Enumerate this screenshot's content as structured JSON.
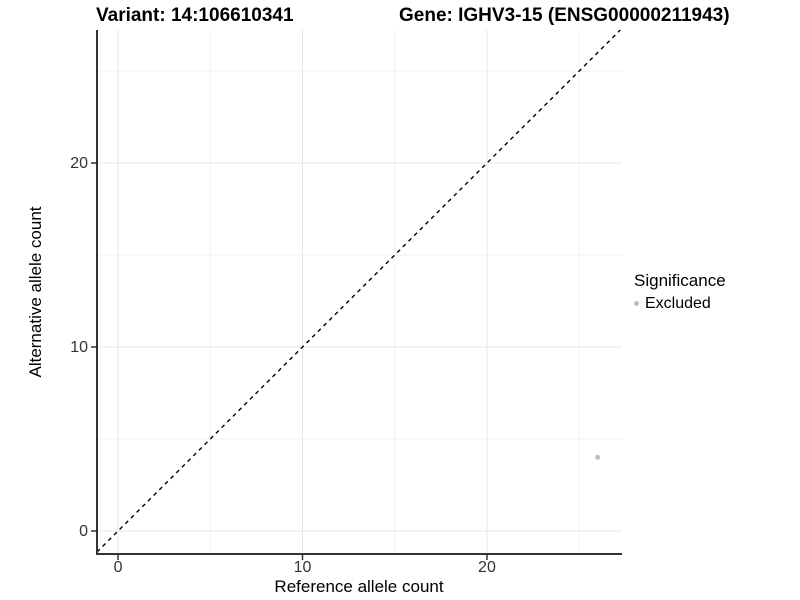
{
  "chart_data": {
    "type": "scatter",
    "title_left": "Variant: 14:106610341",
    "title_right": "Gene: IGHV3-15 (ENSG00000211943)",
    "xlabel": "Reference allele count",
    "ylabel": "Alternative allele count",
    "xlim": [
      -1.14,
      27.32
    ],
    "ylim": [
      -1.25,
      27.23
    ],
    "x_major_ticks": [
      0,
      10,
      20
    ],
    "y_major_ticks": [
      0,
      10,
      20
    ],
    "x_minor_gridlines": [
      5,
      15,
      25
    ],
    "y_minor_gridlines": [
      5,
      15,
      25
    ],
    "grid": "major and minor gridlines on white background",
    "reference_line": {
      "type": "identity y=x",
      "style": "dashed",
      "color": "#000000"
    },
    "series": [
      {
        "name": "Excluded",
        "color": "#bebebe",
        "points": [
          {
            "x": 26,
            "y": 4
          }
        ]
      }
    ],
    "legend": {
      "title": "Significance",
      "position": "right",
      "items": [
        {
          "label": "Excluded",
          "color": "#bebebe"
        }
      ]
    },
    "colors": {
      "axis": "#333333",
      "tick_label": "#333333",
      "grid_major": "#e6e6e6",
      "grid_minor": "#f2f2f2"
    }
  }
}
